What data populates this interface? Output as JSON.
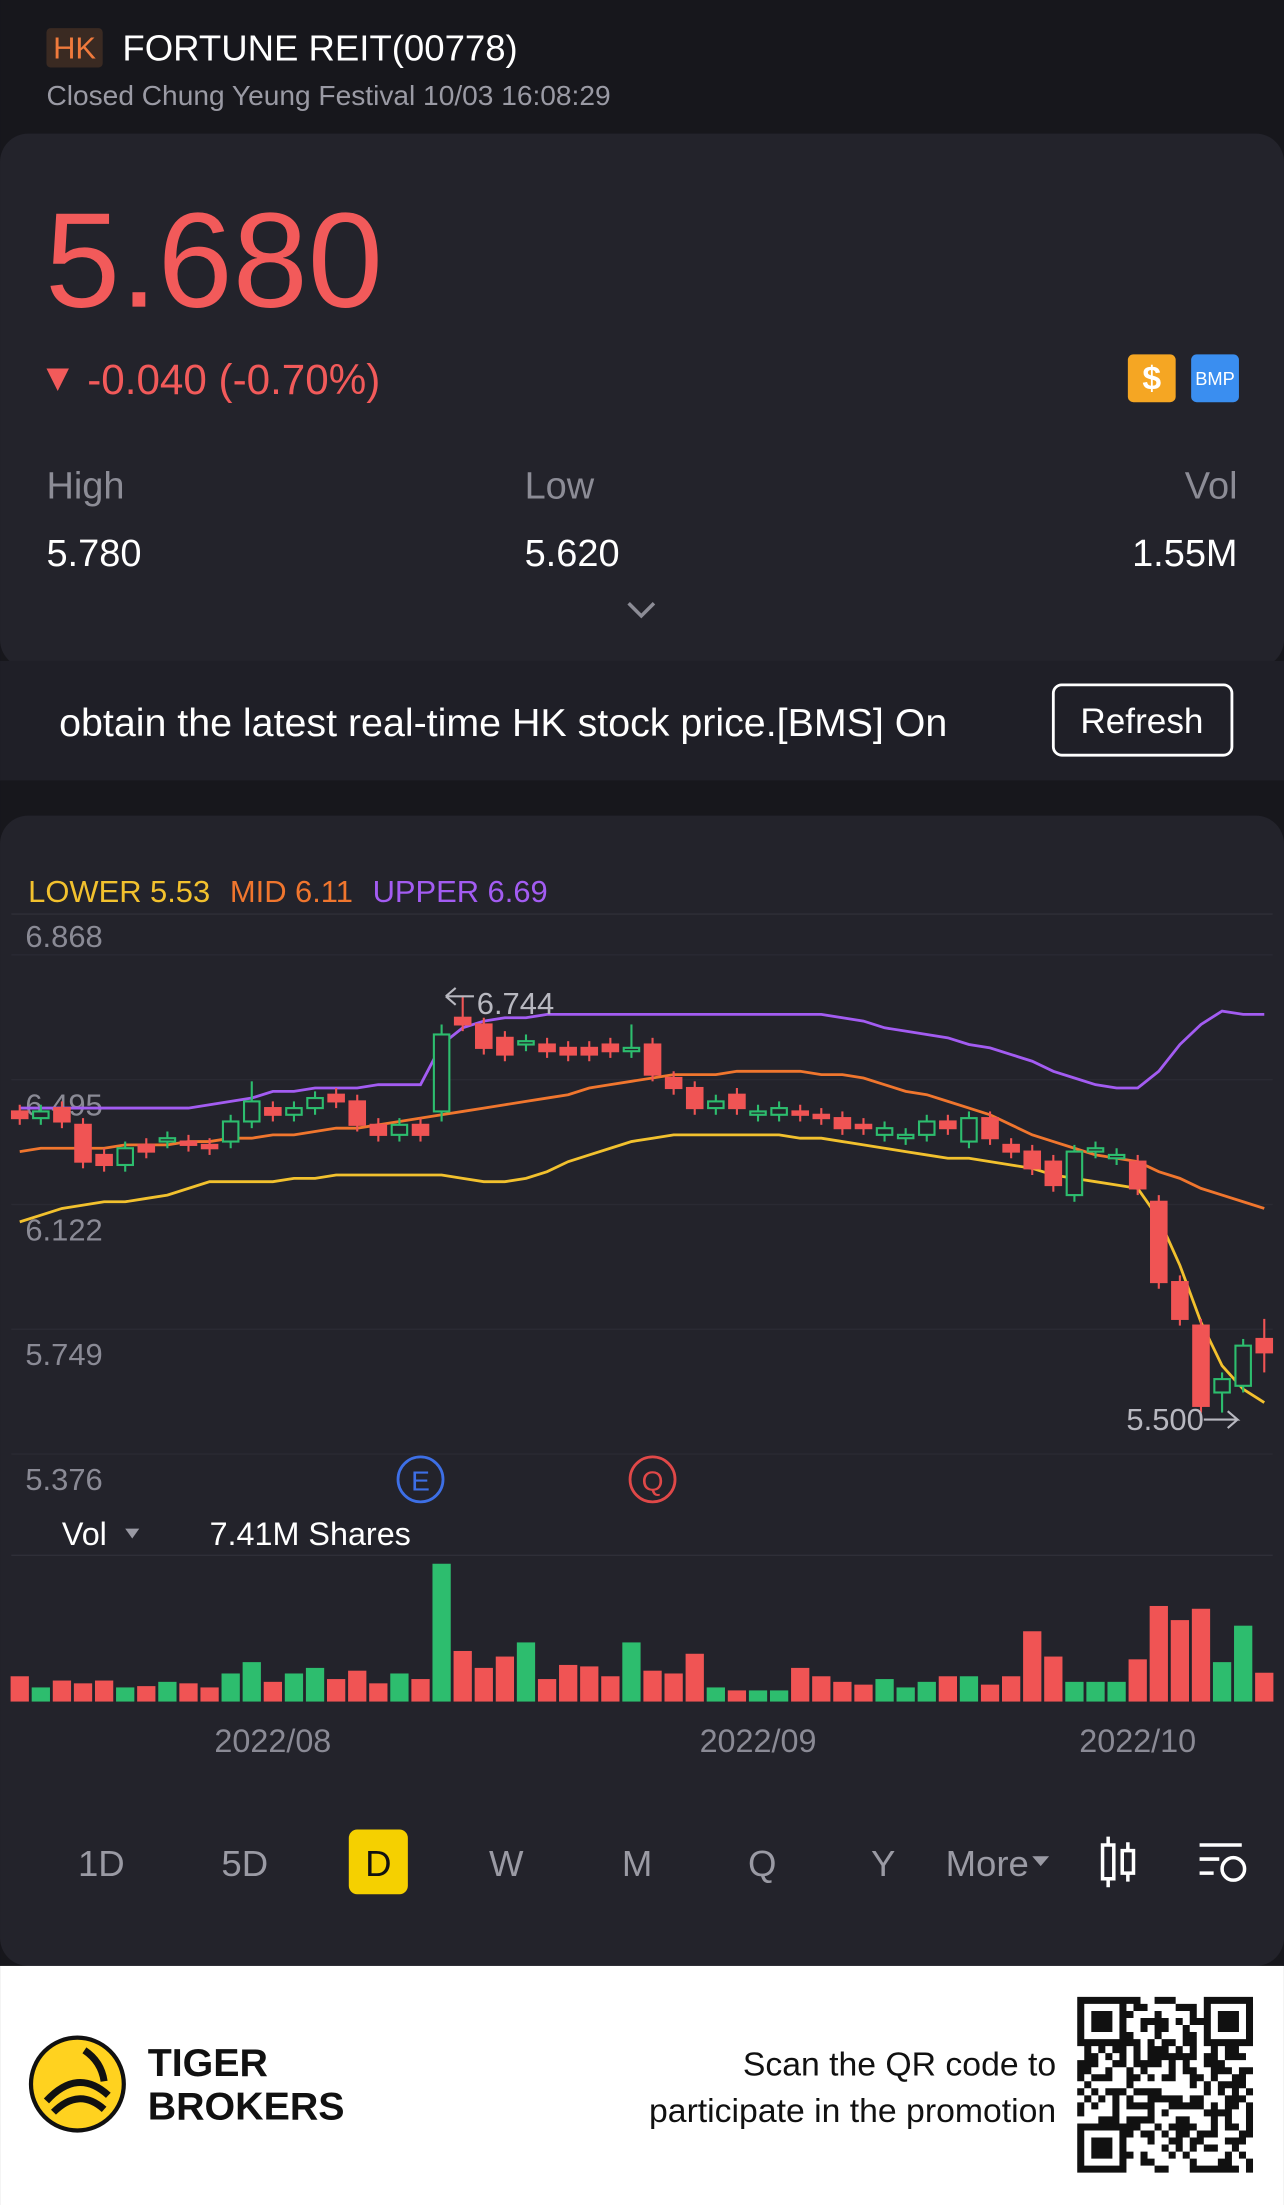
{
  "header": {
    "exchange": "HK",
    "name": "FORTUNE REIT(00778)",
    "status": "Closed Chung Yeung Festival 10/03 16:08:29"
  },
  "quote": {
    "price": "5.680",
    "change": "-0.040 (-0.70%)",
    "badges": [
      "$",
      "BMP"
    ],
    "stats": [
      {
        "label": "High",
        "value": "5.780"
      },
      {
        "label": "Low",
        "value": "5.620"
      },
      {
        "label": "Vol",
        "value": "1.55M"
      }
    ]
  },
  "banner": {
    "text": "obtain the latest real-time HK stock price.[BMS] On",
    "button": "Refresh"
  },
  "chart_data": {
    "type": "candlestick",
    "categories": [
      null,
      null,
      null,
      null,
      null,
      null,
      null,
      null,
      null,
      null,
      null,
      null,
      null,
      null,
      null,
      null,
      null,
      null,
      null,
      null,
      null,
      null,
      null,
      null,
      null,
      null,
      null,
      null,
      null,
      null,
      null,
      null,
      null,
      null,
      null,
      null,
      null,
      null,
      null,
      null,
      null,
      null,
      null,
      null,
      null,
      null,
      null,
      null,
      null,
      null,
      null,
      null,
      null,
      null,
      null,
      null,
      null,
      null,
      null,
      null
    ],
    "open": [
      6.4,
      6.38,
      6.41,
      6.36,
      6.27,
      6.24,
      6.3,
      6.31,
      6.31,
      6.3,
      6.31,
      6.37,
      6.41,
      6.39,
      6.41,
      6.45,
      6.43,
      6.36,
      6.33,
      6.36,
      6.4,
      6.68,
      6.66,
      6.62,
      6.6,
      6.6,
      6.59,
      6.59,
      6.6,
      6.58,
      6.6,
      6.5,
      6.47,
      6.41,
      6.45,
      6.39,
      6.39,
      6.4,
      6.39,
      6.38,
      6.36,
      6.33,
      6.32,
      6.33,
      6.37,
      6.31,
      6.38,
      6.3,
      6.28,
      6.25,
      6.15,
      6.28,
      6.26,
      6.25,
      6.13,
      5.89,
      5.76,
      5.56,
      5.58,
      5.72
    ],
    "high": [
      6.42,
      6.42,
      6.43,
      6.38,
      6.29,
      6.31,
      6.32,
      6.34,
      6.33,
      6.32,
      6.39,
      6.49,
      6.43,
      6.43,
      6.46,
      6.47,
      6.45,
      6.38,
      6.38,
      6.38,
      6.66,
      6.744,
      6.68,
      6.64,
      6.63,
      6.62,
      6.61,
      6.61,
      6.62,
      6.66,
      6.62,
      6.52,
      6.49,
      6.45,
      6.47,
      6.42,
      6.43,
      6.42,
      6.41,
      6.4,
      6.38,
      6.37,
      6.35,
      6.39,
      6.39,
      6.4,
      6.4,
      6.32,
      6.3,
      6.27,
      6.3,
      6.31,
      6.29,
      6.27,
      6.15,
      5.91,
      5.78,
      5.62,
      5.72,
      5.78
    ],
    "low": [
      6.36,
      6.36,
      6.35,
      6.23,
      6.22,
      6.22,
      6.26,
      6.29,
      6.28,
      6.27,
      6.29,
      6.35,
      6.37,
      6.37,
      6.39,
      6.41,
      6.34,
      6.31,
      6.31,
      6.31,
      6.37,
      6.64,
      6.57,
      6.55,
      6.58,
      6.56,
      6.55,
      6.55,
      6.56,
      6.56,
      6.49,
      6.45,
      6.39,
      6.39,
      6.39,
      6.37,
      6.37,
      6.37,
      6.36,
      6.33,
      6.33,
      6.31,
      6.3,
      6.31,
      6.33,
      6.29,
      6.3,
      6.26,
      6.21,
      6.16,
      6.13,
      6.26,
      6.24,
      6.15,
      5.87,
      5.76,
      5.5,
      5.5,
      5.56,
      5.62
    ],
    "close": [
      6.38,
      6.4,
      6.37,
      6.25,
      6.24,
      6.29,
      6.28,
      6.32,
      6.3,
      6.29,
      6.37,
      6.43,
      6.39,
      6.41,
      6.44,
      6.43,
      6.36,
      6.33,
      6.36,
      6.33,
      6.63,
      6.66,
      6.59,
      6.57,
      6.61,
      6.58,
      6.57,
      6.57,
      6.58,
      6.59,
      6.51,
      6.47,
      6.41,
      6.43,
      6.41,
      6.4,
      6.41,
      6.39,
      6.38,
      6.35,
      6.35,
      6.35,
      6.33,
      6.37,
      6.35,
      6.38,
      6.32,
      6.28,
      6.23,
      6.18,
      6.28,
      6.29,
      6.27,
      6.17,
      5.89,
      5.78,
      5.52,
      5.6,
      5.7,
      5.68
    ],
    "up_color": "#2dbd6e",
    "down_color": "#f05454",
    "series": [
      {
        "name": "LOWER",
        "color": "#f2c12e",
        "values": [
          6.07,
          6.09,
          6.11,
          6.12,
          6.13,
          6.13,
          6.14,
          6.15,
          6.17,
          6.19,
          6.19,
          6.19,
          6.19,
          6.2,
          6.2,
          6.21,
          6.21,
          6.21,
          6.21,
          6.21,
          6.21,
          6.2,
          6.19,
          6.19,
          6.2,
          6.22,
          6.25,
          6.27,
          6.29,
          6.31,
          6.32,
          6.33,
          6.33,
          6.33,
          6.33,
          6.33,
          6.33,
          6.32,
          6.32,
          6.31,
          6.3,
          6.29,
          6.28,
          6.27,
          6.26,
          6.26,
          6.25,
          6.24,
          6.23,
          6.21,
          6.2,
          6.19,
          6.18,
          6.17,
          6.08,
          5.94,
          5.77,
          5.64,
          5.57,
          5.53
        ]
      },
      {
        "name": "MID",
        "color": "#f0762e",
        "values": [
          6.28,
          6.29,
          6.29,
          6.29,
          6.29,
          6.3,
          6.3,
          6.3,
          6.31,
          6.31,
          6.32,
          6.32,
          6.33,
          6.33,
          6.34,
          6.35,
          6.35,
          6.36,
          6.37,
          6.38,
          6.39,
          6.4,
          6.41,
          6.42,
          6.43,
          6.44,
          6.45,
          6.47,
          6.48,
          6.49,
          6.5,
          6.51,
          6.51,
          6.51,
          6.52,
          6.52,
          6.52,
          6.52,
          6.51,
          6.51,
          6.5,
          6.48,
          6.46,
          6.45,
          6.43,
          6.41,
          6.39,
          6.36,
          6.33,
          6.31,
          6.29,
          6.27,
          6.26,
          6.25,
          6.22,
          6.2,
          6.17,
          6.15,
          6.13,
          6.11
        ]
      },
      {
        "name": "UPPER",
        "color": "#a35cf2",
        "values": [
          6.41,
          6.41,
          6.41,
          6.41,
          6.41,
          6.41,
          6.41,
          6.41,
          6.41,
          6.42,
          6.43,
          6.44,
          6.46,
          6.46,
          6.47,
          6.47,
          6.47,
          6.48,
          6.48,
          6.48,
          6.6,
          6.65,
          6.67,
          6.68,
          6.68,
          6.69,
          6.69,
          6.69,
          6.69,
          6.69,
          6.69,
          6.69,
          6.69,
          6.69,
          6.69,
          6.69,
          6.69,
          6.69,
          6.69,
          6.68,
          6.67,
          6.65,
          6.64,
          6.63,
          6.62,
          6.6,
          6.59,
          6.57,
          6.55,
          6.52,
          6.5,
          6.48,
          6.47,
          6.47,
          6.52,
          6.6,
          6.66,
          6.7,
          6.69,
          6.69
        ]
      }
    ],
    "ylim": [
      5.376,
      6.868
    ],
    "yticks": [
      6.868,
      6.495,
      6.122,
      5.749,
      5.376
    ],
    "xticks": [
      {
        "value": 12,
        "label": "2022/08"
      },
      {
        "value": 35,
        "label": "2022/09"
      },
      {
        "value": 53,
        "label": "2022/10"
      }
    ],
    "annotations": [
      {
        "value": 6.744,
        "label": "6.744"
      },
      {
        "value": 5.5,
        "label": "5.500"
      }
    ],
    "events": [
      {
        "label": "E",
        "x": 19,
        "color": "#3d6fe6"
      },
      {
        "label": "Q",
        "x": 30,
        "color": "#e04848"
      }
    ],
    "volume": {
      "title": "Vol",
      "text": "7.41M Shares",
      "values": [
        1.36,
        0.76,
        1.13,
        0.98,
        1.13,
        0.76,
        0.83,
        1.06,
        0.98,
        0.76,
        1.51,
        2.12,
        1.06,
        1.51,
        1.81,
        1.21,
        1.66,
        0.98,
        1.51,
        1.21,
        7.41,
        2.72,
        1.81,
        2.42,
        3.18,
        1.21,
        1.97,
        1.89,
        1.36,
        3.18,
        1.66,
        1.51,
        2.57,
        0.76,
        0.6,
        0.6,
        0.6,
        1.81,
        1.36,
        1.06,
        0.91,
        1.21,
        0.76,
        1.06,
        1.36,
        1.36,
        0.91,
        1.36,
        3.78,
        2.42,
        1.06,
        1.06,
        1.06,
        2.27,
        5.14,
        4.38,
        4.99,
        2.12,
        4.08,
        1.55
      ]
    }
  },
  "periods": {
    "tabs": [
      "1D",
      "5D",
      "D",
      "W",
      "M",
      "Q",
      "Y",
      "More"
    ],
    "active": "D"
  },
  "footer": {
    "brand": [
      "TIGER",
      "BROKERS"
    ],
    "promo": [
      "Scan the QR code to",
      "participate in the promotion"
    ]
  }
}
